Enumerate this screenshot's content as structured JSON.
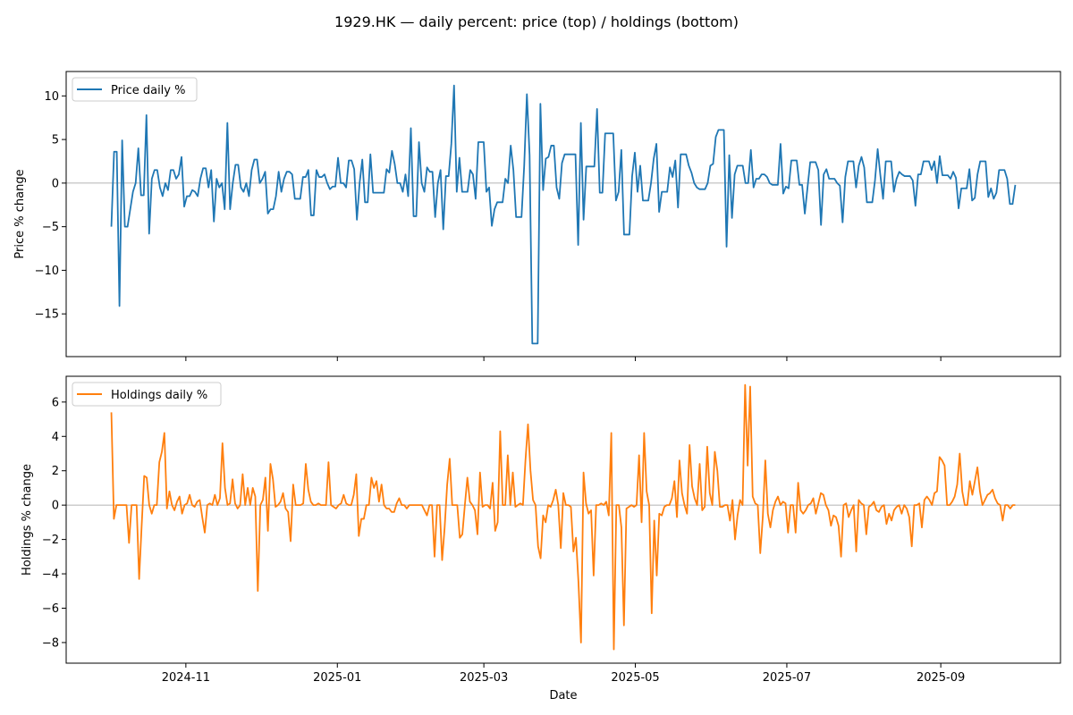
{
  "title": "1929.HK — daily percent: price (top) / holdings (bottom)",
  "colors": {
    "price": "#1f77b4",
    "holdings": "#ff7f0e",
    "zero_line": "#999999"
  },
  "chart_data": [
    {
      "type": "line",
      "series": [
        {
          "name": "Price daily %",
          "values": [
            -5,
            3.6,
            3.6,
            -14.1,
            4.9,
            -5,
            -5,
            -3,
            -1,
            0,
            4,
            -1.4,
            -1.4,
            7.8,
            -5.8,
            0.5,
            1.5,
            1.5,
            -0.5,
            -1.5,
            0,
            -0.8,
            1.5,
            1.5,
            0.5,
            1,
            3,
            -2.7,
            -1.5,
            -1.5,
            -0.8,
            -1,
            -1.5,
            0.5,
            1.7,
            1.7,
            -0.5,
            1.5,
            -4.4,
            0.5,
            -0.5,
            0,
            -3,
            6.9,
            -3,
            0,
            2.1,
            2.1,
            -0.5,
            -1,
            0,
            -1.5,
            1.5,
            2.7,
            2.7,
            0,
            0.5,
            1.3,
            -3.5,
            -3,
            -3,
            -1.5,
            1.3,
            -1,
            0.5,
            1.3,
            1.3,
            1,
            -1.8,
            -1.8,
            -1.8,
            0.7,
            0.7,
            1.5,
            -3.7,
            -3.7,
            1.5,
            0.7,
            0.7,
            1,
            0,
            -0.7,
            -0.4,
            -0.4,
            2.9,
            0,
            0,
            -0.5,
            2.6,
            2.6,
            1.6,
            -4.2,
            0,
            2.7,
            -2.2,
            -2.2,
            3.3,
            -1.1,
            -1.1,
            -1.1,
            -1.1,
            -1.1,
            1.6,
            1.2,
            3.7,
            2.2,
            0,
            0,
            -1,
            1,
            -1.5,
            6.3,
            -3.8,
            -3.8,
            4.7,
            0,
            -1,
            1.8,
            1.3,
            1.3,
            -3.9,
            0,
            1.5,
            -5.3,
            0.8,
            0.8,
            4.5,
            11.2,
            -1,
            2.9,
            -1,
            -1,
            -1,
            1.5,
            1,
            -1.8,
            4.7,
            4.7,
            4.7,
            -1,
            -0.5,
            -4.9,
            -3,
            -2.2,
            -2.2,
            -2.2,
            0.5,
            0,
            4.3,
            1.5,
            -3.9,
            -3.9,
            -3.9,
            2,
            10.2,
            3.2,
            -18.4,
            -18.4,
            -18.4,
            9.1,
            -0.8,
            2.8,
            3,
            4.3,
            4.3,
            -0.5,
            -1.8,
            2.3,
            3.3,
            3.3,
            3.3,
            3.3,
            3.3,
            -7.1,
            6.9,
            -4.2,
            1.9,
            1.9,
            1.9,
            1.9,
            8.5,
            -1.1,
            -1.1,
            5.7,
            5.7,
            5.7,
            5.7,
            -2,
            -1,
            3.8,
            -5.9,
            -5.9,
            -5.9,
            0.8,
            3.5,
            -1,
            2,
            -2,
            -2,
            -2,
            0,
            2.8,
            4.5,
            -3.3,
            -1,
            -1,
            -1,
            1.8,
            0.7,
            2.6,
            -2.8,
            3.3,
            3.3,
            3.3,
            2,
            1.2,
            0,
            -0.5,
            -0.7,
            -0.7,
            -0.7,
            0,
            2,
            2.2,
            5.3,
            6.1,
            6.1,
            6.1,
            -7.3,
            3.2,
            -4,
            1,
            2,
            2,
            2,
            0,
            0,
            3.8,
            -0.5,
            0.5,
            0.5,
            1,
            1,
            0.7,
            0,
            -0.2,
            -0.2,
            -0.2,
            4.5,
            -1.2,
            -0.4,
            -0.6,
            2.6,
            2.6,
            2.6,
            -0.2,
            -0.2,
            -3.5,
            -0.5,
            2.4,
            2.4,
            2.4,
            1.5,
            -4.8,
            1,
            1.6,
            0.5,
            0.5,
            0.5,
            0,
            -0.3,
            -4.5,
            0.7,
            2.5,
            2.5,
            2.5,
            -0.5,
            2,
            3,
            1.8,
            -2.2,
            -2.2,
            -2.2,
            0.3,
            3.9,
            0.9,
            -1.8,
            2.5,
            2.5,
            2.5,
            -1,
            0.5,
            1.3,
            1,
            0.8,
            0.8,
            0.8,
            0.3,
            -2.6,
            1,
            1,
            2.5,
            2.5,
            2.5,
            1.5,
            2.5,
            0,
            3.1,
            0.9,
            0.9,
            0.9,
            0.5,
            1.3,
            0.6,
            -2.9,
            -0.6,
            -0.6,
            -0.6,
            1.6,
            -2,
            -1.7,
            1,
            2.5,
            2.5,
            2.5,
            -1.6,
            -0.6,
            -1.8,
            -1.1,
            1.5,
            1.5,
            1.5,
            0.5,
            -2.4,
            -2.4,
            -0.2
          ]
        }
      ],
      "x_range": [
        "2024-10-02",
        "2025-10-01"
      ],
      "xticks": [
        "2024-11",
        "2025-01",
        "2025-03",
        "2025-05",
        "2025-07",
        "2025-09"
      ],
      "yticks": [
        -15,
        -10,
        -5,
        0,
        5,
        10
      ],
      "ylabel": "Price % change",
      "ylim": [
        -19.9,
        12.8
      ],
      "zero_line": true,
      "legend": "upper-left"
    },
    {
      "type": "line",
      "series": [
        {
          "name": "Holdings daily %",
          "values": [
            5.4,
            -0.8,
            0,
            0,
            0,
            0,
            0,
            -2.2,
            0,
            0,
            0,
            -4.3,
            -1.2,
            1.7,
            1.6,
            0,
            -0.5,
            0,
            0,
            2.5,
            3.1,
            4.2,
            -0.2,
            0.8,
            0,
            -0.3,
            0.2,
            0.5,
            -0.5,
            0,
            0.1,
            0.6,
            0,
            -0.1,
            0.2,
            0.3,
            -0.7,
            -1.6,
            0,
            0.1,
            0,
            0.6,
            0,
            0.4,
            3.6,
            1,
            0,
            0.1,
            1.5,
            0.1,
            -0.2,
            0,
            1.8,
            0,
            1,
            0,
            1,
            0.5,
            -5,
            0,
            0.3,
            1.6,
            -1.5,
            2.4,
            1.5,
            -0.1,
            0,
            0.2,
            0.7,
            -0.2,
            -0.4,
            -2.1,
            1.2,
            0,
            0,
            0,
            0.1,
            2.4,
            0.9,
            0.2,
            0,
            0,
            0.1,
            0,
            0,
            0,
            2.5,
            0,
            -0.1,
            -0.2,
            0,
            0.1,
            0.6,
            0.1,
            0,
            0,
            0.6,
            1.8,
            -1.8,
            -0.8,
            -0.8,
            0,
            0,
            1.6,
            1,
            1.4,
            0.2,
            1.2,
            0,
            -0.2,
            -0.2,
            -0.4,
            -0.4,
            0.1,
            0.4,
            0,
            0,
            -0.2,
            0,
            0,
            0,
            0,
            0,
            0,
            -0.3,
            -0.6,
            0,
            0,
            -3,
            0,
            0,
            -3.2,
            -1.3,
            1.2,
            2.7,
            0,
            0,
            0,
            -1.9,
            -1.7,
            0,
            1.6,
            0.2,
            0,
            -0.3,
            -1.7,
            1.9,
            -0.1,
            0,
            0,
            -0.2,
            1.3,
            -1.5,
            -1,
            4.3,
            0,
            0,
            2.9,
            0,
            1.9,
            -0.1,
            0,
            0.1,
            0,
            2.6,
            4.7,
            2,
            0.3,
            0,
            -2.4,
            -3.1,
            -0.6,
            -1,
            0,
            -0.1,
            0.3,
            0.9,
            0,
            -2.5,
            0.7,
            0,
            0,
            -0.1,
            -2.7,
            -1.9,
            -4.5,
            -8,
            1.9,
            0.1,
            -0.5,
            -0.3,
            -4.1,
            0,
            0,
            0.1,
            0,
            0.2,
            -0.6,
            4.2,
            -8.4,
            0,
            0,
            -1.3,
            -7,
            -0.2,
            -0.1,
            0,
            -0.1,
            0,
            2.9,
            -1,
            4.2,
            0.8,
            0,
            -6.3,
            -0.9,
            -4.1,
            -0.5,
            -0.6,
            -0.1,
            0,
            0,
            0.4,
            1.4,
            -0.7,
            2.6,
            0.7,
            0,
            -0.5,
            3.5,
            1.1,
            0.4,
            0,
            2.4,
            -0.3,
            -0.1,
            3.4,
            0.7,
            0,
            3.1,
            2,
            -0.1,
            -0.1,
            0,
            0,
            -0.9,
            0.3,
            -2,
            -0.6,
            0.3,
            0,
            7,
            2.3,
            6.9,
            0.5,
            0.1,
            0,
            -2.8,
            -0.7,
            2.6,
            -0.5,
            -1.3,
            -0.3,
            0.2,
            0.5,
            0,
            0.2,
            0.1,
            -1.6,
            0,
            0,
            -1.6,
            1.3,
            -0.3,
            -0.5,
            -0.3,
            0,
            0.1,
            0.4,
            -0.5,
            0.1,
            0.7,
            0.6,
            0,
            -0.3,
            -1.2,
            -0.6,
            -0.7,
            -1.2,
            -3,
            0,
            0.1,
            -0.7,
            -0.3,
            0,
            -2.7,
            0.3,
            0.1,
            0,
            -1.7,
            -0.1,
            0,
            0.2,
            -0.3,
            -0.4,
            -0.1,
            0,
            -1.1,
            -0.5,
            -0.9,
            -0.3,
            -0.1,
            0,
            -0.5,
            0,
            -0.2,
            -0.7,
            -2.4,
            0,
            0,
            0.1,
            -1.3,
            0.3,
            0.5,
            0.3,
            0,
            0.7,
            0.8,
            2.8,
            2.6,
            2.3,
            0,
            0,
            0.2,
            0.5,
            1.2,
            3,
            0.8,
            0,
            0,
            1.4,
            0.6,
            1.4,
            2.2,
            0.8,
            0,
            0.3,
            0.6,
            0.7,
            0.9,
            0.4,
            0.1,
            0,
            -0.9,
            0,
            0,
            -0.2,
            0,
            0
          ]
        }
      ],
      "x_range": [
        "2024-10-02",
        "2025-10-01"
      ],
      "xticks": [
        "2024-11",
        "2025-01",
        "2025-03",
        "2025-05",
        "2025-07",
        "2025-09"
      ],
      "xlabel": "Date",
      "yticks": [
        -8,
        -6,
        -4,
        -2,
        0,
        2,
        4,
        6
      ],
      "ylabel": "Holdings % change",
      "ylim": [
        -9.2,
        7.5
      ],
      "zero_line": true,
      "legend": "upper-left"
    }
  ]
}
